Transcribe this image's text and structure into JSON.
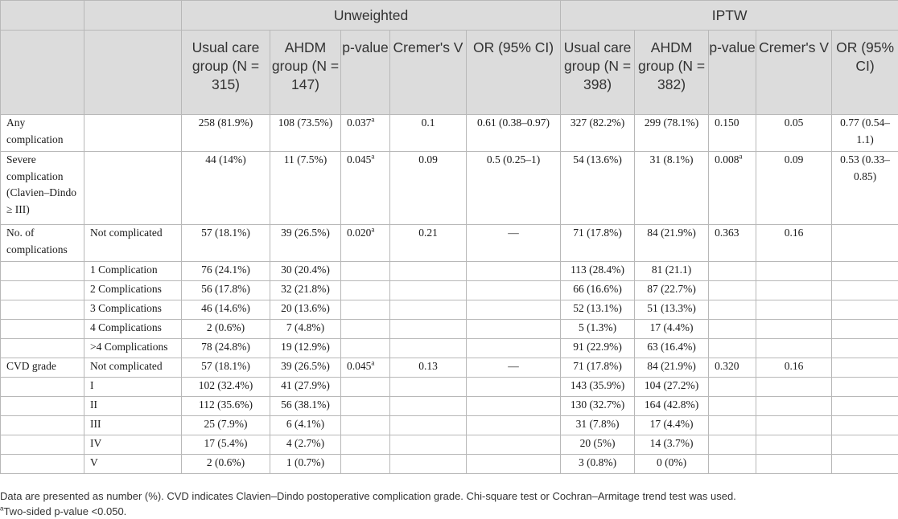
{
  "header": {
    "group_unweighted": "Unweighted",
    "group_iptw": "IPTW",
    "unweighted": {
      "usual_care": "Usual care group (N = 315)",
      "ahdm": "AHDM group (N = 147)",
      "p_value": "p-value",
      "cremers_v": "Cremer's V",
      "or": "OR (95% CI)"
    },
    "iptw": {
      "usual_care": "Usual care group (N = 398)",
      "ahdm": "AHDM group (N = 382)",
      "p_value": "p-value",
      "cremers_v": "Cremer's V",
      "or": "OR (95% CI)"
    }
  },
  "rows": [
    {
      "label": "Any complication",
      "sub": "",
      "u_uc": "258 (81.9%)",
      "u_ahdm": "108 (73.5%)",
      "u_p": "0.037",
      "u_p_sup": "a",
      "u_v": "0.1",
      "u_or": "0.61 (0.38–0.97)",
      "i_uc": "327 (82.2%)",
      "i_ahdm": "299 (78.1%)",
      "i_p": "0.150",
      "i_p_sup": "",
      "i_v": "0.05",
      "i_or": "0.77 (0.54–1.1)"
    },
    {
      "label": "Severe complication (Clavien–Dindo ≥ III)",
      "sub": "",
      "u_uc": "44 (14%)",
      "u_ahdm": "11 (7.5%)",
      "u_p": "0.045",
      "u_p_sup": "a",
      "u_v": "0.09",
      "u_or": "0.5 (0.25–1)",
      "i_uc": "54 (13.6%)",
      "i_ahdm": "31 (8.1%)",
      "i_p": "0.008",
      "i_p_sup": "a",
      "i_v": "0.09",
      "i_or": "0.53 (0.33–0.85)"
    },
    {
      "label": "No. of complications",
      "sub": "Not complicated",
      "u_uc": "57 (18.1%)",
      "u_ahdm": "39 (26.5%)",
      "u_p": "0.020",
      "u_p_sup": "a",
      "u_v": "0.21",
      "u_or": "—",
      "i_uc": "71 (17.8%)",
      "i_ahdm": "84 (21.9%)",
      "i_p": "0.363",
      "i_p_sup": "",
      "i_v": "0.16",
      "i_or": ""
    },
    {
      "label": "",
      "sub": "1 Complication",
      "u_uc": "76 (24.1%)",
      "u_ahdm": "30 (20.4%)",
      "u_p": "",
      "u_p_sup": "",
      "u_v": "",
      "u_or": "",
      "i_uc": "113 (28.4%)",
      "i_ahdm": "81 (21.1)",
      "i_p": "",
      "i_p_sup": "",
      "i_v": "",
      "i_or": ""
    },
    {
      "label": "",
      "sub": "2 Complications",
      "u_uc": "56 (17.8%)",
      "u_ahdm": "32 (21.8%)",
      "u_p": "",
      "u_p_sup": "",
      "u_v": "",
      "u_or": "",
      "i_uc": "66 (16.6%)",
      "i_ahdm": "87 (22.7%)",
      "i_p": "",
      "i_p_sup": "",
      "i_v": "",
      "i_or": ""
    },
    {
      "label": "",
      "sub": "3 Complications",
      "u_uc": "46 (14.6%)",
      "u_ahdm": "20 (13.6%)",
      "u_p": "",
      "u_p_sup": "",
      "u_v": "",
      "u_or": "",
      "i_uc": "52 (13.1%)",
      "i_ahdm": "51 (13.3%)",
      "i_p": "",
      "i_p_sup": "",
      "i_v": "",
      "i_or": ""
    },
    {
      "label": "",
      "sub": "4 Complications",
      "u_uc": "2 (0.6%)",
      "u_ahdm": "7 (4.8%)",
      "u_p": "",
      "u_p_sup": "",
      "u_v": "",
      "u_or": "",
      "i_uc": "5 (1.3%)",
      "i_ahdm": "17 (4.4%)",
      "i_p": "",
      "i_p_sup": "",
      "i_v": "",
      "i_or": ""
    },
    {
      "label": "",
      "sub": ">4 Complications",
      "u_uc": "78 (24.8%)",
      "u_ahdm": "19 (12.9%)",
      "u_p": "",
      "u_p_sup": "",
      "u_v": "",
      "u_or": "",
      "i_uc": "91 (22.9%)",
      "i_ahdm": "63 (16.4%)",
      "i_p": "",
      "i_p_sup": "",
      "i_v": "",
      "i_or": ""
    },
    {
      "label": "CVD grade",
      "sub": "Not complicated",
      "u_uc": "57 (18.1%)",
      "u_ahdm": "39 (26.5%)",
      "u_p": "0.045",
      "u_p_sup": "a",
      "u_v": "0.13",
      "u_or": "—",
      "i_uc": "71 (17.8%)",
      "i_ahdm": "84 (21.9%)",
      "i_p": "0.320",
      "i_p_sup": "",
      "i_v": "0.16",
      "i_or": ""
    },
    {
      "label": "",
      "sub": "I",
      "u_uc": "102 (32.4%)",
      "u_ahdm": "41 (27.9%)",
      "u_p": "",
      "u_p_sup": "",
      "u_v": "",
      "u_or": "",
      "i_uc": "143 (35.9%)",
      "i_ahdm": "104 (27.2%)",
      "i_p": "",
      "i_p_sup": "",
      "i_v": "",
      "i_or": ""
    },
    {
      "label": "",
      "sub": "II",
      "u_uc": "112 (35.6%)",
      "u_ahdm": "56 (38.1%)",
      "u_p": "",
      "u_p_sup": "",
      "u_v": "",
      "u_or": "",
      "i_uc": "130 (32.7%)",
      "i_ahdm": "164 (42.8%)",
      "i_p": "",
      "i_p_sup": "",
      "i_v": "",
      "i_or": ""
    },
    {
      "label": "",
      "sub": "III",
      "u_uc": "25 (7.9%)",
      "u_ahdm": "6 (4.1%)",
      "u_p": "",
      "u_p_sup": "",
      "u_v": "",
      "u_or": "",
      "i_uc": "31 (7.8%)",
      "i_ahdm": "17 (4.4%)",
      "i_p": "",
      "i_p_sup": "",
      "i_v": "",
      "i_or": ""
    },
    {
      "label": "",
      "sub": "IV",
      "u_uc": "17 (5.4%)",
      "u_ahdm": "4 (2.7%)",
      "u_p": "",
      "u_p_sup": "",
      "u_v": "",
      "u_or": "",
      "i_uc": "20 (5%)",
      "i_ahdm": "14 (3.7%)",
      "i_p": "",
      "i_p_sup": "",
      "i_v": "",
      "i_or": ""
    },
    {
      "label": "",
      "sub": "V",
      "u_uc": "2 (0.6%)",
      "u_ahdm": "1 (0.7%)",
      "u_p": "",
      "u_p_sup": "",
      "u_v": "",
      "u_or": "",
      "i_uc": "3 (0.8%)",
      "i_ahdm": "0 (0%)",
      "i_p": "",
      "i_p_sup": "",
      "i_v": "",
      "i_or": ""
    }
  ],
  "footer": {
    "note": "Data are presented as number (%). CVD indicates Clavien–Dindo postoperative complication grade. Chi-square test or Cochran–Armitage trend test was used.",
    "footnote_mark": "a",
    "footnote_text": "Two-sided p-value <0.050."
  }
}
